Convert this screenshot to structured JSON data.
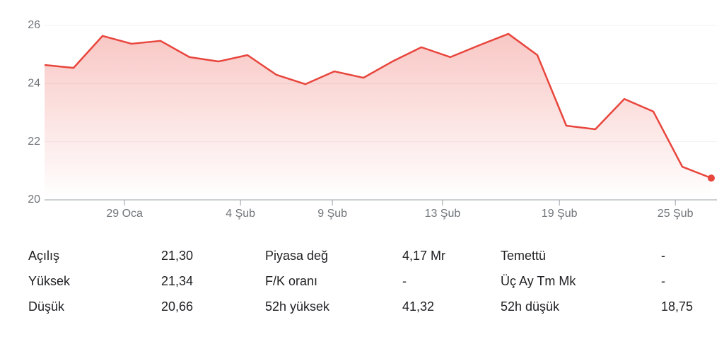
{
  "chart_data": {
    "type": "line",
    "x": [
      0,
      1,
      2,
      3,
      4,
      5,
      6,
      7,
      8,
      9,
      10,
      11,
      12,
      13,
      14,
      15,
      16,
      17,
      18,
      19,
      20,
      21,
      22,
      23
    ],
    "values": [
      24.64,
      24.54,
      25.64,
      25.37,
      25.47,
      24.91,
      24.76,
      24.98,
      24.3,
      23.98,
      24.42,
      24.2,
      24.76,
      25.25,
      24.91,
      25.32,
      25.71,
      24.98,
      22.55,
      22.43,
      23.47,
      23.04,
      21.14,
      20.75
    ],
    "color": "#e8453c",
    "xlim": [
      0,
      23
    ],
    "xticks": [
      {
        "value": 2.76,
        "label": "29 Oca"
      },
      {
        "value": 6.76,
        "label": "4 Şub"
      },
      {
        "value": 9.93,
        "label": "9 Şub"
      },
      {
        "value": 13.73,
        "label": "13 Şub"
      },
      {
        "value": 17.76,
        "label": "19 Şub"
      },
      {
        "value": 21.76,
        "label": "25 Şub"
      }
    ],
    "ylim": [
      20,
      26
    ],
    "yticks": [
      20,
      22,
      24,
      26
    ],
    "grid": true
  },
  "stats": {
    "rows": [
      [
        "Açılış",
        "21,30",
        "Piyasa değ",
        "4,17 Mr",
        "Temettü",
        "-"
      ],
      [
        "Yüksek",
        "21,34",
        "F/K oranı",
        "-",
        "Üç Ay Tm Mk",
        "-"
      ],
      [
        "Düşük",
        "20,66",
        "52h yüksek",
        "41,32",
        "52h düşük",
        "18,75"
      ]
    ]
  }
}
